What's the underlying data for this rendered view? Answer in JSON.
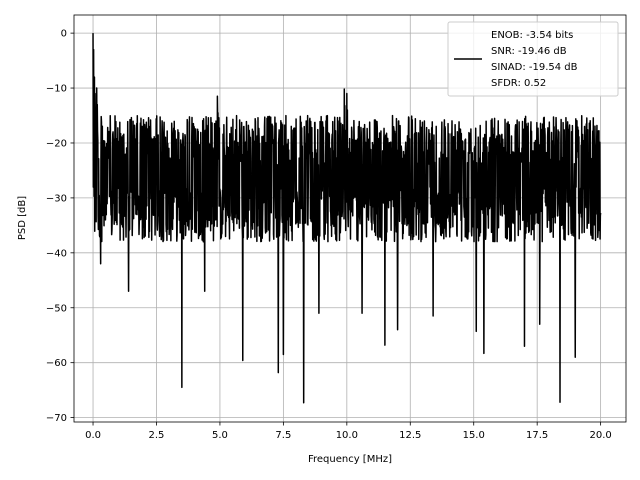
{
  "chart_data": {
    "type": "line",
    "xlabel": "Frequency [MHz]",
    "ylabel": "PSD [dB]",
    "xlim": [
      -0.75,
      21.0
    ],
    "ylim": [
      -70.8,
      3.3
    ],
    "grid": true,
    "x_ticks": [
      0.0,
      2.5,
      5.0,
      7.5,
      10.0,
      12.5,
      15.0,
      17.5,
      20.0
    ],
    "x_tick_labels": [
      "0.0",
      "2.5",
      "5.0",
      "7.5",
      "10.0",
      "12.5",
      "15.0",
      "17.5",
      "20.0"
    ],
    "y_ticks": [
      0,
      -10,
      -20,
      -30,
      -40,
      -50,
      -60,
      -70
    ],
    "y_tick_labels": [
      "0",
      "−10",
      "−20",
      "−30",
      "−40",
      "−50",
      "−60",
      "−70"
    ],
    "legend": {
      "placement": "top-right",
      "lines": [
        "ENOB: -3.54 bits",
        "SNR: -19.46 dB",
        "SINAD: -19.54 dB",
        "SFDR: 0.52"
      ]
    },
    "series": [
      {
        "color": "#000000",
        "x_start": 0.0,
        "x_end": 20.0,
        "noise_floor_range_db": [
          -40,
          -15
        ],
        "peaks": [
          {
            "x": 0.0,
            "y": 0.0
          },
          {
            "x": 0.05,
            "y": -8
          },
          {
            "x": 0.15,
            "y": -10
          },
          {
            "x": 4.9,
            "y": -11.5
          },
          {
            "x": 9.9,
            "y": -10.2
          },
          {
            "x": 10.0,
            "y": -11
          }
        ],
        "dips": [
          {
            "x": 0.3,
            "y": -42
          },
          {
            "x": 1.4,
            "y": -47
          },
          {
            "x": 3.5,
            "y": -64.5
          },
          {
            "x": 4.4,
            "y": -47
          },
          {
            "x": 5.9,
            "y": -59.6
          },
          {
            "x": 7.3,
            "y": -61.8
          },
          {
            "x": 7.5,
            "y": -58.5
          },
          {
            "x": 8.3,
            "y": -67.3
          },
          {
            "x": 8.9,
            "y": -51
          },
          {
            "x": 10.6,
            "y": -51
          },
          {
            "x": 11.5,
            "y": -56.8
          },
          {
            "x": 12.0,
            "y": -54
          },
          {
            "x": 13.4,
            "y": -51.5
          },
          {
            "x": 15.1,
            "y": -54.3
          },
          {
            "x": 15.4,
            "y": -58.3
          },
          {
            "x": 17.0,
            "y": -57
          },
          {
            "x": 17.6,
            "y": -53
          },
          {
            "x": 18.4,
            "y": -67.2
          },
          {
            "x": 19.0,
            "y": -59
          }
        ]
      }
    ]
  }
}
